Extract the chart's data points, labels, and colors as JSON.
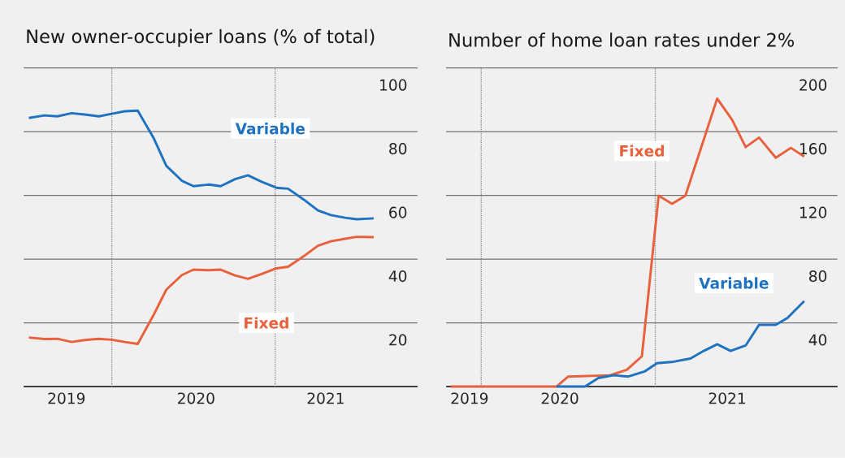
{
  "chart_data": [
    {
      "type": "line",
      "title": "New owner-occupier loans (% of total)",
      "xlim": [
        2018.67,
        2021.71
      ],
      "ylim": [
        0,
        100
      ],
      "xticks": [
        2019,
        2020,
        2021
      ],
      "yticks": [
        {
          "value": 0,
          "label": null
        },
        20,
        40,
        60,
        80,
        100
      ],
      "grid": "y",
      "ref_lines": [
        {
          "axis": "x",
          "value": 2019.35,
          "line_style": "dotted",
          "color": "#888888"
        },
        {
          "axis": "x",
          "value": 2020.61,
          "line_style": "dotted",
          "color": "#888888"
        }
      ],
      "series": [
        {
          "name": "Variable",
          "color": "#1f72c0",
          "x": [
            2018.71,
            2018.83,
            2018.93,
            2019.04,
            2019.14,
            2019.25,
            2019.35,
            2019.45,
            2019.55,
            2019.67,
            2019.77,
            2019.89,
            2019.98,
            2020.1,
            2020.19,
            2020.3,
            2020.4,
            2020.51,
            2020.62,
            2020.71,
            2020.83,
            2020.94,
            2021.04,
            2021.15,
            2021.24,
            2021.37
          ],
          "values": [
            84.3,
            85.1,
            84.8,
            85.8,
            85.4,
            84.8,
            85.6,
            86.4,
            86.6,
            78.2,
            69.3,
            64.6,
            62.9,
            63.4,
            62.9,
            65.1,
            66.3,
            64.2,
            62.4,
            62.1,
            58.7,
            55.3,
            53.8,
            53.0,
            52.5,
            52.8
          ]
        },
        {
          "name": "Fixed",
          "color": "#e8603c",
          "x": [
            2018.71,
            2018.83,
            2018.93,
            2019.04,
            2019.14,
            2019.25,
            2019.35,
            2019.45,
            2019.55,
            2019.67,
            2019.77,
            2019.89,
            2019.98,
            2020.1,
            2020.19,
            2020.3,
            2020.4,
            2020.51,
            2020.62,
            2020.71,
            2020.83,
            2020.94,
            2021.04,
            2021.15,
            2021.24,
            2021.37
          ],
          "values": [
            15.4,
            14.9,
            15.0,
            14.0,
            14.6,
            15.0,
            14.7,
            14.0,
            13.4,
            22.3,
            30.4,
            35.0,
            36.7,
            36.5,
            36.7,
            34.9,
            33.8,
            35.4,
            37.1,
            37.6,
            40.9,
            44.2,
            45.6,
            46.4,
            47.0,
            46.9
          ]
        }
      ]
    },
    {
      "type": "line",
      "title": "Number of home loan rates under 2%",
      "xlim": [
        2019.32,
        2021.66
      ],
      "ylim": [
        0,
        200
      ],
      "xticks": [
        {
          "value": 2019.46,
          "label": "2019"
        },
        2020,
        2021
      ],
      "yticks": [
        {
          "value": 0,
          "label": null
        },
        40,
        80,
        120,
        160,
        200
      ],
      "grid": "y",
      "ref_lines": [
        {
          "axis": "x",
          "value": 2019.53,
          "line_style": "dotted",
          "color": "#888888"
        },
        {
          "axis": "x",
          "value": 2020.57,
          "line_style": "dotted",
          "color": "#888888"
        }
      ],
      "series": [
        {
          "name": "Fixed",
          "color": "#e8603c",
          "x": [
            2019.35,
            2019.98,
            2020.05,
            2020.3,
            2020.4,
            2020.49,
            2020.59,
            2020.67,
            2020.75,
            2020.94,
            2021.03,
            2021.11,
            2021.19,
            2021.29,
            2021.38,
            2021.46
          ],
          "values": [
            0,
            0,
            6.3,
            7.1,
            10.5,
            19.0,
            119.8,
            114.7,
            119.8,
            180.8,
            167.3,
            150.3,
            156.3,
            143.6,
            149.8,
            144.4
          ]
        },
        {
          "name": "Variable",
          "color": "#1f72c0",
          "x": [
            2019.98,
            2020.15,
            2020.23,
            2020.32,
            2020.41,
            2020.51,
            2020.58,
            2020.68,
            2020.78,
            2020.86,
            2020.94,
            2021.02,
            2021.11,
            2021.19,
            2021.29,
            2021.36,
            2021.46
          ],
          "values": [
            0,
            0,
            5.4,
            7.1,
            6.3,
            9.7,
            14.7,
            15.6,
            17.6,
            22.4,
            26.6,
            22.4,
            25.8,
            38.8,
            38.8,
            43.1,
            53.7
          ]
        }
      ]
    }
  ]
}
